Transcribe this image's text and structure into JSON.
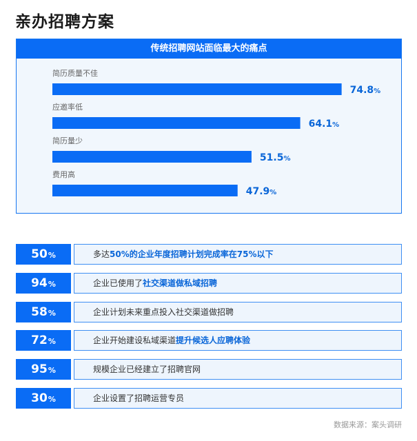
{
  "page": {
    "title": "亲办招聘方案",
    "source": "数据来源：案头调研"
  },
  "chart_data": {
    "type": "bar",
    "orientation": "horizontal",
    "title": "传统招聘网站面临最大的痛点",
    "categories": [
      "简历质量不佳",
      "应邀率低",
      "简历量少",
      "费用高"
    ],
    "values": [
      74.8,
      64.1,
      51.5,
      47.9
    ],
    "value_suffix": "%",
    "xlim": [
      0,
      100
    ],
    "grid": false,
    "legend": "none",
    "colors": {
      "bar": "#0a6cf5",
      "value_text": "#0a66d8"
    }
  },
  "stats": [
    {
      "pct": "50",
      "unit": "%",
      "parts": [
        {
          "text": "多达",
          "hl": false
        },
        {
          "text": "50%的企业年度招聘计划完成率在75%以下",
          "hl": true
        }
      ]
    },
    {
      "pct": "94",
      "unit": "%",
      "parts": [
        {
          "text": "企业已使用了",
          "hl": false
        },
        {
          "text": "社交渠道做私域招聘",
          "hl": true
        }
      ]
    },
    {
      "pct": "58",
      "unit": "%",
      "parts": [
        {
          "text": "企业计划未来重点投入社交渠道做招聘",
          "hl": false
        }
      ]
    },
    {
      "pct": "72",
      "unit": "%",
      "parts": [
        {
          "text": "企业开始建设私域渠道",
          "hl": false
        },
        {
          "text": "提升候选人应聘体验",
          "hl": true
        }
      ]
    },
    {
      "pct": "95",
      "unit": "%",
      "parts": [
        {
          "text": "规模企业已经建立了招聘官网",
          "hl": false
        }
      ]
    },
    {
      "pct": "30",
      "unit": "%",
      "parts": [
        {
          "text": "企业设置了招聘运营专员",
          "hl": false
        }
      ]
    }
  ]
}
